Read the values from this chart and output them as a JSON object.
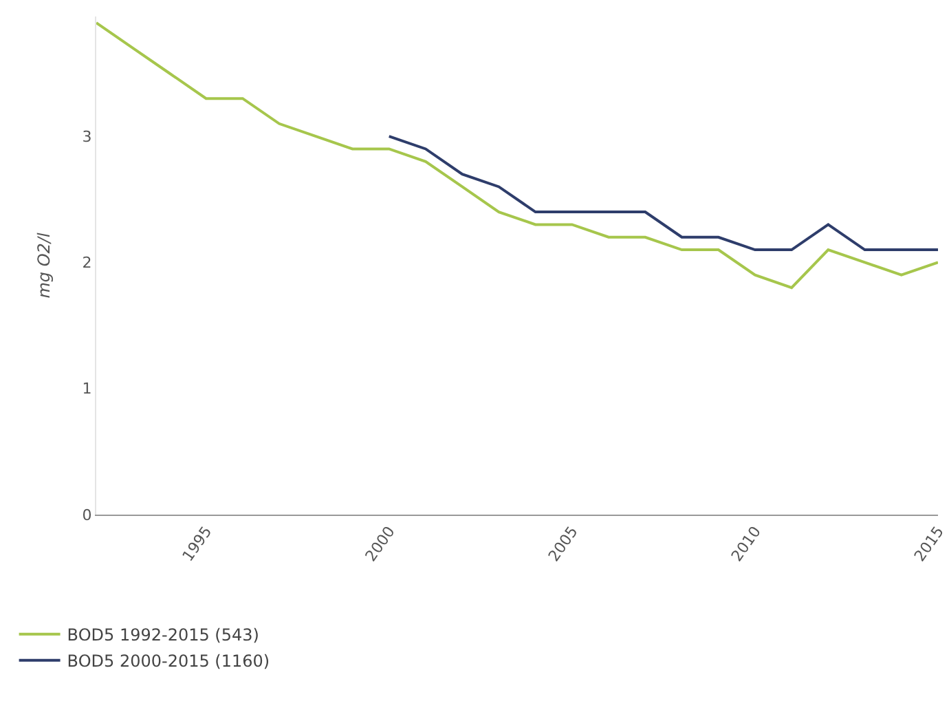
{
  "chart_data": {
    "type": "line",
    "ylabel": "mg O2/l",
    "xlim": [
      1992,
      2015
    ],
    "xticks": [
      1995,
      2000,
      2005,
      2010,
      2015
    ],
    "ylim": [
      0,
      3.95
    ],
    "yticks": [
      0,
      1,
      2,
      3
    ],
    "grid": false,
    "legend": "bottom left",
    "marker": "none",
    "line_style": "solid",
    "series": [
      {
        "name": "BOD5 1992-2015 (543)",
        "color": "#a6c64c",
        "x": [
          1992,
          1993,
          1994,
          1995,
          1996,
          1997,
          1998,
          1999,
          2000,
          2001,
          2002,
          2003,
          2004,
          2005,
          2006,
          2007,
          2008,
          2009,
          2010,
          2011,
          2012,
          2013,
          2014,
          2015
        ],
        "values": [
          3.9,
          3.7,
          3.5,
          3.3,
          3.3,
          3.1,
          3.0,
          2.9,
          2.9,
          2.8,
          2.6,
          2.4,
          2.3,
          2.3,
          2.2,
          2.2,
          2.1,
          2.1,
          1.9,
          1.8,
          2.1,
          2.0,
          1.9,
          2.0
        ]
      },
      {
        "name": "BOD5 2000-2015 (1160)",
        "color": "#2e3d6b",
        "x": [
          2000,
          2001,
          2002,
          2003,
          2004,
          2005,
          2006,
          2007,
          2008,
          2009,
          2010,
          2011,
          2012,
          2013,
          2014,
          2015
        ],
        "values": [
          3.0,
          2.9,
          2.7,
          2.6,
          2.4,
          2.4,
          2.4,
          2.4,
          2.2,
          2.2,
          2.1,
          2.1,
          2.3,
          2.1,
          2.1,
          2.1
        ]
      }
    ]
  }
}
